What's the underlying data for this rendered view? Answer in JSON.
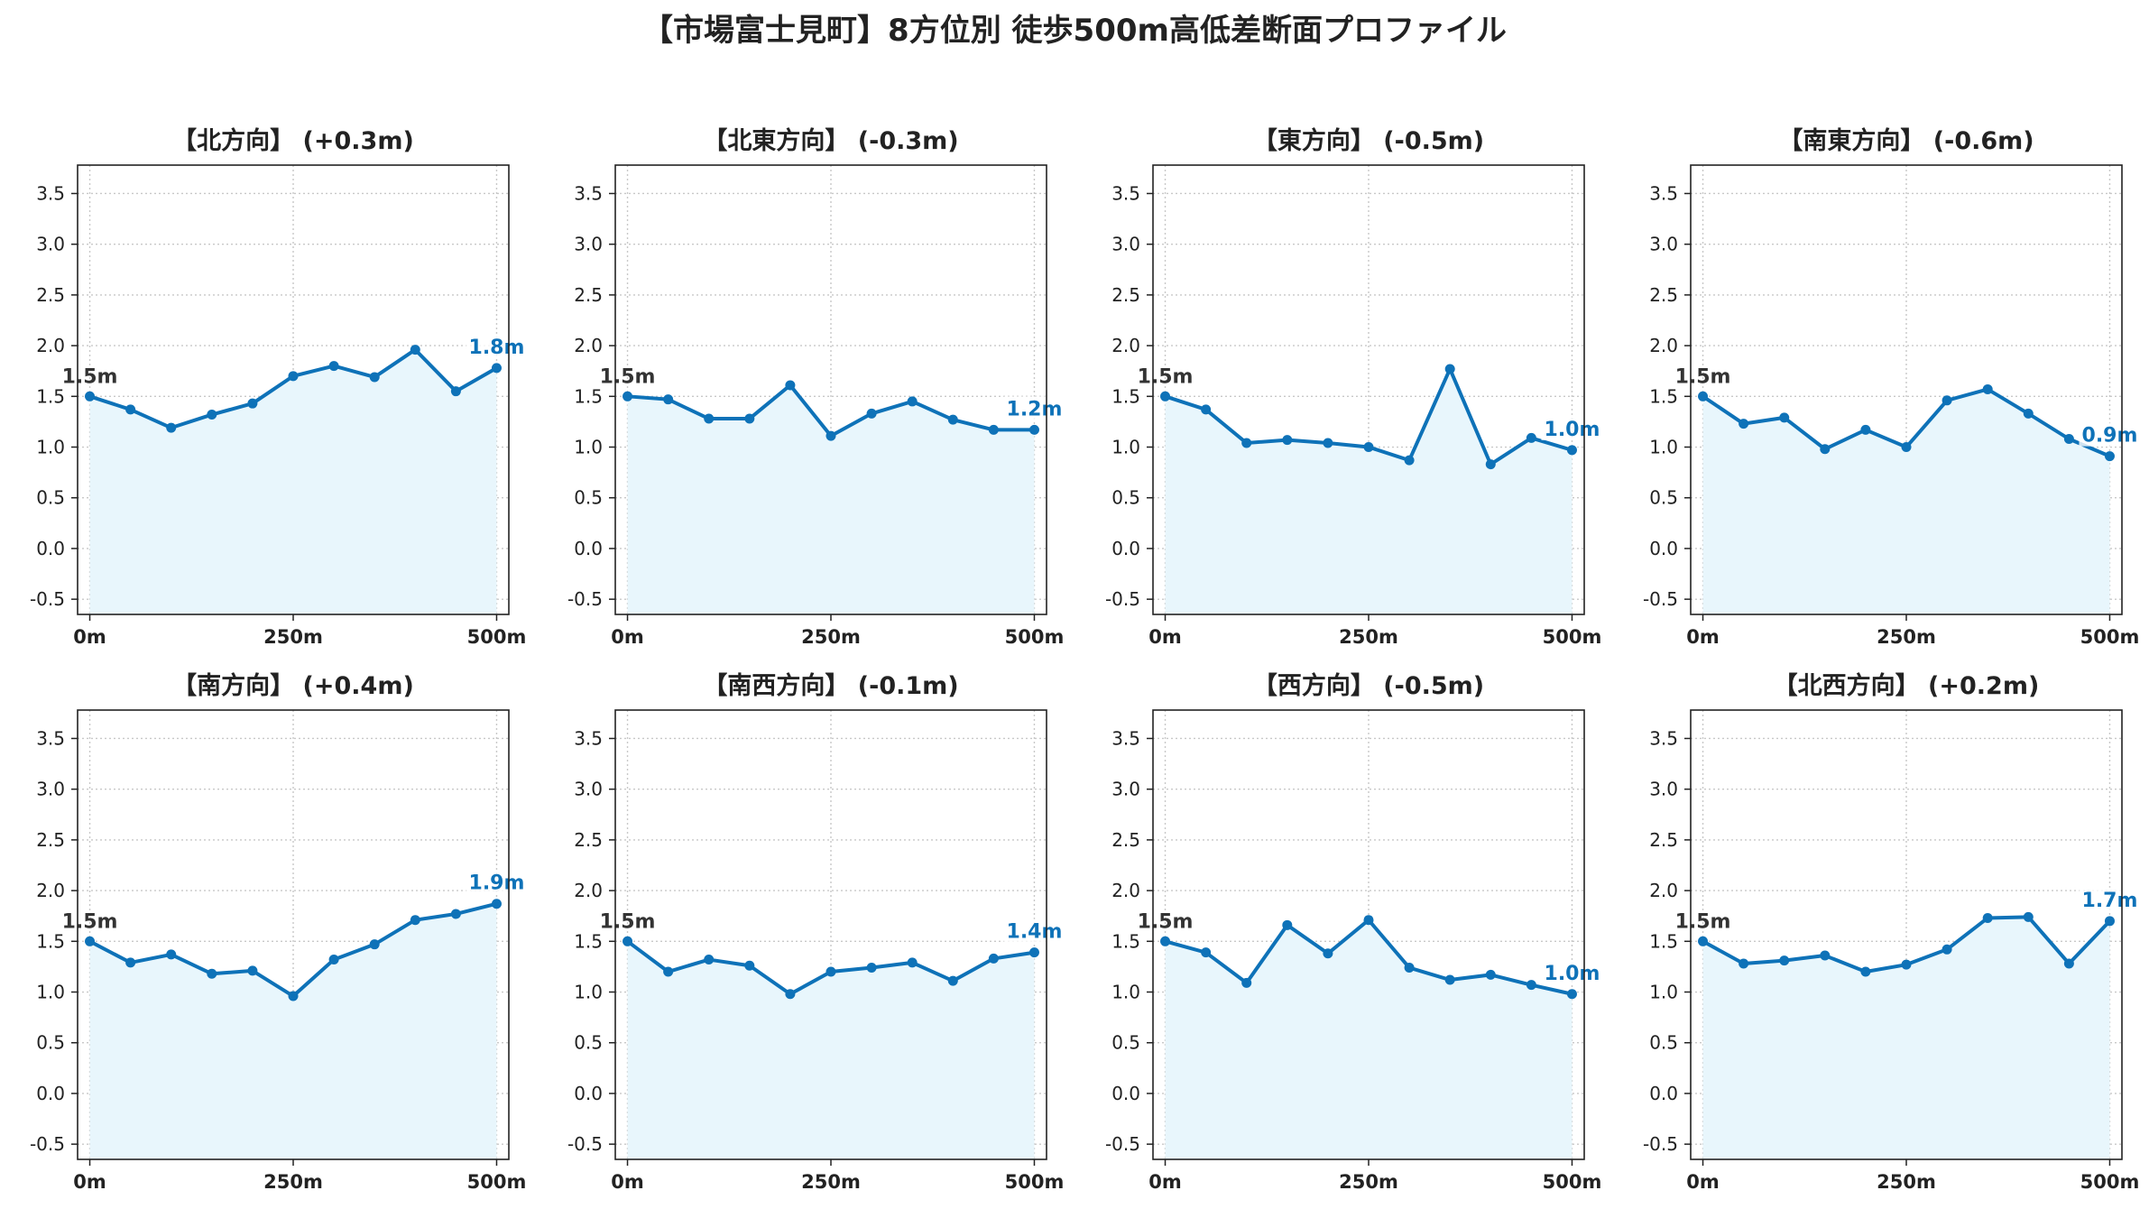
{
  "title": "【市場富士見町】8方位別 徒歩500m高低差断面プロファイル",
  "colors": {
    "line": "#0e72b8",
    "fill": "#e8f6fc",
    "grid": "#c8c8c8",
    "axis": "#222222",
    "start_label": "#333333"
  },
  "chart_data": [
    {
      "type": "area",
      "title": "【北方向】 (+0.3m)",
      "x": [
        0,
        50,
        100,
        150,
        200,
        250,
        300,
        350,
        400,
        450,
        500
      ],
      "y": [
        1.5,
        1.37,
        1.19,
        1.32,
        1.43,
        1.7,
        1.8,
        1.69,
        1.96,
        1.55,
        1.78
      ],
      "start_label": "1.5m",
      "end_label": "1.8m",
      "xticks": [
        "0m",
        "250m",
        "500m"
      ],
      "xtick_values": [
        0,
        250,
        500
      ],
      "yticks": [
        "-0.5",
        "0.0",
        "0.5",
        "1.0",
        "1.5",
        "2.0",
        "2.5",
        "3.0",
        "3.5"
      ],
      "ytick_values": [
        -0.5,
        0.0,
        0.5,
        1.0,
        1.5,
        2.0,
        2.5,
        3.0,
        3.5
      ],
      "xlim": [
        -15,
        515
      ],
      "ylim": [
        -0.65,
        3.78
      ],
      "grid": true
    },
    {
      "type": "area",
      "title": "【北東方向】 (-0.3m)",
      "x": [
        0,
        50,
        100,
        150,
        200,
        250,
        300,
        350,
        400,
        450,
        500
      ],
      "y": [
        1.5,
        1.47,
        1.28,
        1.28,
        1.61,
        1.11,
        1.33,
        1.45,
        1.27,
        1.17,
        1.17
      ],
      "start_label": "1.5m",
      "end_label": "1.2m",
      "xticks": [
        "0m",
        "250m",
        "500m"
      ],
      "xtick_values": [
        0,
        250,
        500
      ],
      "yticks": [
        "-0.5",
        "0.0",
        "0.5",
        "1.0",
        "1.5",
        "2.0",
        "2.5",
        "3.0",
        "3.5"
      ],
      "ytick_values": [
        -0.5,
        0.0,
        0.5,
        1.0,
        1.5,
        2.0,
        2.5,
        3.0,
        3.5
      ],
      "xlim": [
        -15,
        515
      ],
      "ylim": [
        -0.65,
        3.78
      ],
      "grid": true
    },
    {
      "type": "area",
      "title": "【東方向】 (-0.5m)",
      "x": [
        0,
        50,
        100,
        150,
        200,
        250,
        300,
        350,
        400,
        450,
        500
      ],
      "y": [
        1.5,
        1.37,
        1.04,
        1.07,
        1.04,
        1.0,
        0.87,
        1.77,
        0.83,
        1.09,
        0.97
      ],
      "start_label": "1.5m",
      "end_label": "1.0m",
      "xticks": [
        "0m",
        "250m",
        "500m"
      ],
      "xtick_values": [
        0,
        250,
        500
      ],
      "yticks": [
        "-0.5",
        "0.0",
        "0.5",
        "1.0",
        "1.5",
        "2.0",
        "2.5",
        "3.0",
        "3.5"
      ],
      "ytick_values": [
        -0.5,
        0.0,
        0.5,
        1.0,
        1.5,
        2.0,
        2.5,
        3.0,
        3.5
      ],
      "xlim": [
        -15,
        515
      ],
      "ylim": [
        -0.65,
        3.78
      ],
      "grid": true
    },
    {
      "type": "area",
      "title": "【南東方向】 (-0.6m)",
      "x": [
        0,
        50,
        100,
        150,
        200,
        250,
        300,
        350,
        400,
        450,
        500
      ],
      "y": [
        1.5,
        1.23,
        1.29,
        0.98,
        1.17,
        1.0,
        1.46,
        1.57,
        1.33,
        1.08,
        0.91
      ],
      "start_label": "1.5m",
      "end_label": "0.9m",
      "xticks": [
        "0m",
        "250m",
        "500m"
      ],
      "xtick_values": [
        0,
        250,
        500
      ],
      "yticks": [
        "-0.5",
        "0.0",
        "0.5",
        "1.0",
        "1.5",
        "2.0",
        "2.5",
        "3.0",
        "3.5"
      ],
      "ytick_values": [
        -0.5,
        0.0,
        0.5,
        1.0,
        1.5,
        2.0,
        2.5,
        3.0,
        3.5
      ],
      "xlim": [
        -15,
        515
      ],
      "ylim": [
        -0.65,
        3.78
      ],
      "grid": true
    },
    {
      "type": "area",
      "title": "【南方向】 (+0.4m)",
      "x": [
        0,
        50,
        100,
        150,
        200,
        250,
        300,
        350,
        400,
        450,
        500
      ],
      "y": [
        1.5,
        1.29,
        1.37,
        1.18,
        1.21,
        0.96,
        1.32,
        1.47,
        1.71,
        1.77,
        1.87
      ],
      "start_label": "1.5m",
      "end_label": "1.9m",
      "xticks": [
        "0m",
        "250m",
        "500m"
      ],
      "xtick_values": [
        0,
        250,
        500
      ],
      "yticks": [
        "-0.5",
        "0.0",
        "0.5",
        "1.0",
        "1.5",
        "2.0",
        "2.5",
        "3.0",
        "3.5"
      ],
      "ytick_values": [
        -0.5,
        0.0,
        0.5,
        1.0,
        1.5,
        2.0,
        2.5,
        3.0,
        3.5
      ],
      "xlim": [
        -15,
        515
      ],
      "ylim": [
        -0.65,
        3.78
      ],
      "grid": true
    },
    {
      "type": "area",
      "title": "【南西方向】 (-0.1m)",
      "x": [
        0,
        50,
        100,
        150,
        200,
        250,
        300,
        350,
        400,
        450,
        500
      ],
      "y": [
        1.5,
        1.2,
        1.32,
        1.26,
        0.98,
        1.2,
        1.24,
        1.29,
        1.11,
        1.33,
        1.39
      ],
      "start_label": "1.5m",
      "end_label": "1.4m",
      "xticks": [
        "0m",
        "250m",
        "500m"
      ],
      "xtick_values": [
        0,
        250,
        500
      ],
      "yticks": [
        "-0.5",
        "0.0",
        "0.5",
        "1.0",
        "1.5",
        "2.0",
        "2.5",
        "3.0",
        "3.5"
      ],
      "ytick_values": [
        -0.5,
        0.0,
        0.5,
        1.0,
        1.5,
        2.0,
        2.5,
        3.0,
        3.5
      ],
      "xlim": [
        -15,
        515
      ],
      "ylim": [
        -0.65,
        3.78
      ],
      "grid": true
    },
    {
      "type": "area",
      "title": "【西方向】 (-0.5m)",
      "x": [
        0,
        50,
        100,
        150,
        200,
        250,
        300,
        350,
        400,
        450,
        500
      ],
      "y": [
        1.5,
        1.39,
        1.09,
        1.66,
        1.38,
        1.71,
        1.24,
        1.12,
        1.17,
        1.07,
        0.98
      ],
      "start_label": "1.5m",
      "end_label": "1.0m",
      "xticks": [
        "0m",
        "250m",
        "500m"
      ],
      "xtick_values": [
        0,
        250,
        500
      ],
      "yticks": [
        "-0.5",
        "0.0",
        "0.5",
        "1.0",
        "1.5",
        "2.0",
        "2.5",
        "3.0",
        "3.5"
      ],
      "ytick_values": [
        -0.5,
        0.0,
        0.5,
        1.0,
        1.5,
        2.0,
        2.5,
        3.0,
        3.5
      ],
      "xlim": [
        -15,
        515
      ],
      "ylim": [
        -0.65,
        3.78
      ],
      "grid": true
    },
    {
      "type": "area",
      "title": "【北西方向】 (+0.2m)",
      "x": [
        0,
        50,
        100,
        150,
        200,
        250,
        300,
        350,
        400,
        450,
        500
      ],
      "y": [
        1.5,
        1.28,
        1.31,
        1.36,
        1.2,
        1.27,
        1.42,
        1.73,
        1.74,
        1.28,
        1.7
      ],
      "start_label": "1.5m",
      "end_label": "1.7m",
      "xticks": [
        "0m",
        "250m",
        "500m"
      ],
      "xtick_values": [
        0,
        250,
        500
      ],
      "yticks": [
        "-0.5",
        "0.0",
        "0.5",
        "1.0",
        "1.5",
        "2.0",
        "2.5",
        "3.0",
        "3.5"
      ],
      "ytick_values": [
        -0.5,
        0.0,
        0.5,
        1.0,
        1.5,
        2.0,
        2.5,
        3.0,
        3.5
      ],
      "xlim": [
        -15,
        515
      ],
      "ylim": [
        -0.65,
        3.78
      ],
      "grid": true
    }
  ]
}
